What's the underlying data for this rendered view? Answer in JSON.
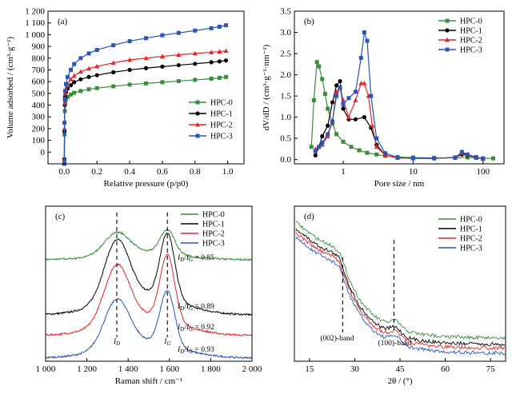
{
  "chart_data": [
    {
      "id": "a",
      "type": "scatter",
      "panel_label": "(a)",
      "xlabel": "Relative pressure (p/p0)",
      "ylabel": "Volume adsorbed / (cm³·g⁻¹)",
      "xlim": [
        -0.1,
        1.1
      ],
      "ylim": [
        -100,
        1200
      ],
      "xticks": [
        0.0,
        0.2,
        0.4,
        0.6,
        0.8,
        1.0
      ],
      "xtick_labels": [
        "0.0",
        "0.2",
        "0.4",
        "0.6",
        "0.8",
        "1.0"
      ],
      "yticks": [
        0,
        100,
        200,
        300,
        400,
        500,
        600,
        700,
        800,
        900,
        1000,
        1100,
        1200
      ],
      "ytick_labels": [
        "0",
        "100",
        "200",
        "300",
        "400",
        "500",
        "600",
        "700",
        "800",
        "900",
        "1 000",
        "1 100",
        "1 200"
      ],
      "legend_position": "center-right",
      "series": [
        {
          "name": "HPC-0",
          "color": "#3a8d3a",
          "marker": "square",
          "x": [
            0.0,
            0.001,
            0.003,
            0.005,
            0.01,
            0.02,
            0.04,
            0.06,
            0.1,
            0.15,
            0.2,
            0.3,
            0.4,
            0.5,
            0.6,
            0.7,
            0.8,
            0.9,
            0.95,
            0.99
          ],
          "y": [
            -80,
            150,
            350,
            420,
            450,
            470,
            490,
            505,
            520,
            535,
            545,
            560,
            575,
            585,
            595,
            605,
            615,
            625,
            632,
            640
          ]
        },
        {
          "name": "HPC-1",
          "color": "#000000",
          "marker": "circle",
          "x": [
            0.0,
            0.001,
            0.003,
            0.005,
            0.01,
            0.02,
            0.04,
            0.06,
            0.1,
            0.15,
            0.2,
            0.3,
            0.4,
            0.5,
            0.6,
            0.7,
            0.8,
            0.9,
            0.95,
            0.99
          ],
          "y": [
            -60,
            180,
            400,
            470,
            510,
            540,
            570,
            595,
            620,
            640,
            655,
            680,
            700,
            715,
            728,
            740,
            752,
            765,
            772,
            780
          ]
        },
        {
          "name": "HPC-2",
          "color": "#e3262a",
          "marker": "triangle",
          "x": [
            0.0,
            0.001,
            0.003,
            0.005,
            0.01,
            0.02,
            0.04,
            0.06,
            0.1,
            0.15,
            0.2,
            0.3,
            0.4,
            0.5,
            0.6,
            0.7,
            0.8,
            0.9,
            0.95,
            0.99
          ],
          "y": [
            -60,
            200,
            420,
            500,
            540,
            580,
            620,
            650,
            685,
            710,
            730,
            760,
            785,
            800,
            815,
            828,
            840,
            850,
            856,
            862
          ]
        },
        {
          "name": "HPC-3",
          "color": "#2a55b0",
          "marker": "square",
          "x": [
            0.0,
            0.001,
            0.003,
            0.005,
            0.01,
            0.02,
            0.04,
            0.06,
            0.1,
            0.15,
            0.2,
            0.3,
            0.4,
            0.5,
            0.6,
            0.7,
            0.8,
            0.9,
            0.95,
            0.99
          ],
          "y": [
            -100,
            250,
            450,
            520,
            580,
            640,
            700,
            750,
            800,
            840,
            870,
            910,
            945,
            970,
            995,
            1015,
            1035,
            1055,
            1068,
            1080
          ]
        }
      ]
    },
    {
      "id": "b",
      "type": "line",
      "panel_label": "(b)",
      "xlabel": "Pore size / nm",
      "ylabel": "dV/dD / (cm³·g⁻¹·nm⁻¹)",
      "xscale": "log",
      "xlim": [
        0.2,
        200
      ],
      "ylim": [
        -0.1,
        3.5
      ],
      "xticks": [
        1,
        10,
        100
      ],
      "xtick_labels": [
        "1",
        "10",
        "100"
      ],
      "yticks": [
        0.0,
        0.5,
        1.0,
        1.5,
        2.0,
        2.5,
        3.0,
        3.5
      ],
      "ytick_labels": [
        "0.0",
        "0.5",
        "1.0",
        "1.5",
        "2.0",
        "2.5",
        "3.0",
        "3.5"
      ],
      "legend_position": "top-right",
      "series": [
        {
          "name": "HPC-0",
          "color": "#3a8d3a",
          "marker": "square",
          "x": [
            0.35,
            0.38,
            0.42,
            0.45,
            0.5,
            0.55,
            0.6,
            0.7,
            0.8,
            1.0,
            1.3,
            1.7,
            2.2,
            3,
            4,
            6,
            10,
            20,
            40,
            60,
            80,
            100,
            140
          ],
          "y": [
            0.3,
            1.4,
            2.3,
            2.2,
            1.9,
            1.55,
            1.2,
            0.85,
            0.6,
            0.42,
            0.3,
            0.22,
            0.16,
            0.12,
            0.09,
            0.06,
            0.05,
            0.04,
            0.04,
            0.05,
            0.04,
            0.03,
            0.03
          ]
        },
        {
          "name": "HPC-1",
          "color": "#000000",
          "marker": "circle",
          "x": [
            0.4,
            0.45,
            0.5,
            0.6,
            0.7,
            0.8,
            0.9,
            1.0,
            1.2,
            1.5,
            2.0,
            2.5,
            3.0,
            4,
            6,
            10,
            20,
            40,
            50,
            60,
            80,
            100
          ],
          "y": [
            0.1,
            0.3,
            0.55,
            0.8,
            1.35,
            1.75,
            1.85,
            1.2,
            0.95,
            0.95,
            1.0,
            0.75,
            0.35,
            0.1,
            0.04,
            0.03,
            0.03,
            0.05,
            0.12,
            0.1,
            0.05,
            0.02
          ]
        },
        {
          "name": "HPC-2",
          "color": "#e3262a",
          "marker": "triangle",
          "x": [
            0.4,
            0.45,
            0.5,
            0.6,
            0.7,
            0.8,
            0.9,
            1.0,
            1.2,
            1.5,
            1.8,
            2.0,
            2.3,
            2.6,
            3.0,
            4,
            6,
            10,
            20,
            40,
            50,
            60,
            80,
            100
          ],
          "y": [
            0.25,
            0.3,
            0.35,
            0.55,
            0.9,
            1.6,
            1.7,
            1.4,
            1.0,
            1.4,
            1.8,
            1.8,
            1.5,
            0.8,
            0.3,
            0.1,
            0.04,
            0.03,
            0.03,
            0.05,
            0.15,
            0.12,
            0.05,
            0.02
          ]
        },
        {
          "name": "HPC-3",
          "color": "#2a55b0",
          "marker": "square",
          "x": [
            0.4,
            0.45,
            0.5,
            0.6,
            0.7,
            0.8,
            0.9,
            1.0,
            1.2,
            1.5,
            1.8,
            2.0,
            2.2,
            2.5,
            3.0,
            4,
            6,
            10,
            20,
            40,
            50,
            60,
            80,
            100
          ],
          "y": [
            0.2,
            0.3,
            0.4,
            0.6,
            0.9,
            1.5,
            1.7,
            1.3,
            1.45,
            1.6,
            2.4,
            3.0,
            2.8,
            1.5,
            0.5,
            0.15,
            0.05,
            0.03,
            0.03,
            0.05,
            0.18,
            0.12,
            0.06,
            0.02
          ]
        }
      ]
    },
    {
      "id": "c",
      "type": "line",
      "panel_label": "(c)",
      "xlabel": "Raman shift / cm⁻¹",
      "xlim": [
        1000,
        2000
      ],
      "xticks": [
        1000,
        1200,
        1400,
        1600,
        1800,
        2000
      ],
      "xtick_labels": [
        "1 000",
        "1 200",
        "1 400",
        "1 600",
        "1 800",
        "2 000"
      ],
      "peak_labels": [
        "ID",
        "IG"
      ],
      "peak_positions": [
        1345,
        1590
      ],
      "legend_position": "top-right",
      "series": [
        {
          "name": "HPC-0",
          "color": "#3a8d3a",
          "offset": 3.0,
          "id_ig_ratio": "0.85"
        },
        {
          "name": "HPC-1",
          "color": "#000000",
          "offset": 2.0,
          "id_ig_ratio": "0.89"
        },
        {
          "name": "HPC-2",
          "color": "#e3262a",
          "offset": 1.0,
          "id_ig_ratio": "0.92"
        },
        {
          "name": "HPC-3",
          "color": "#2a55b0",
          "offset": 0.0,
          "id_ig_ratio": "0.93"
        }
      ],
      "ratio_label": "ID/IG"
    },
    {
      "id": "d",
      "type": "line",
      "panel_label": "(d)",
      "xlabel": "2θ / (°)",
      "xlim": [
        10,
        80
      ],
      "xticks": [
        15,
        30,
        45,
        60,
        75
      ],
      "xtick_labels": [
        "15",
        "30",
        "45",
        "60",
        "75"
      ],
      "annotations": [
        "(002)-band",
        "(100)-band"
      ],
      "annotation_positions": [
        26,
        43
      ],
      "legend_position": "top-right",
      "series": [
        {
          "name": "HPC-0",
          "color": "#3a8d3a"
        },
        {
          "name": "HPC-1",
          "color": "#000000"
        },
        {
          "name": "HPC-2",
          "color": "#e3262a"
        },
        {
          "name": "HPC-3",
          "color": "#2a55b0"
        }
      ]
    }
  ]
}
